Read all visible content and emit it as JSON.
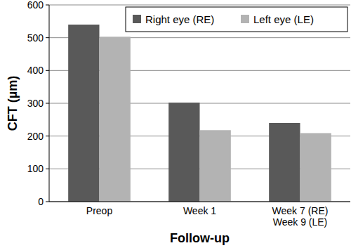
{
  "chart_data": {
    "type": "bar",
    "x_label": "Follow-up",
    "y_label": "CFT (µm)",
    "categories": [
      "Preop",
      "Week 1",
      "Week 7 (RE)\nWeek 9 (LE)"
    ],
    "series": [
      {
        "name": "Right eye (RE)",
        "color": "#595959",
        "values": [
          540,
          302,
          240
        ]
      },
      {
        "name": "Left eye (LE)",
        "color": "#b3b3b3",
        "values": [
          503,
          218,
          209
        ]
      }
    ],
    "ylim": [
      0,
      600
    ],
    "yticks": [
      0,
      100,
      200,
      300,
      400,
      500,
      600
    ],
    "grid": true,
    "legend": "upper right"
  }
}
